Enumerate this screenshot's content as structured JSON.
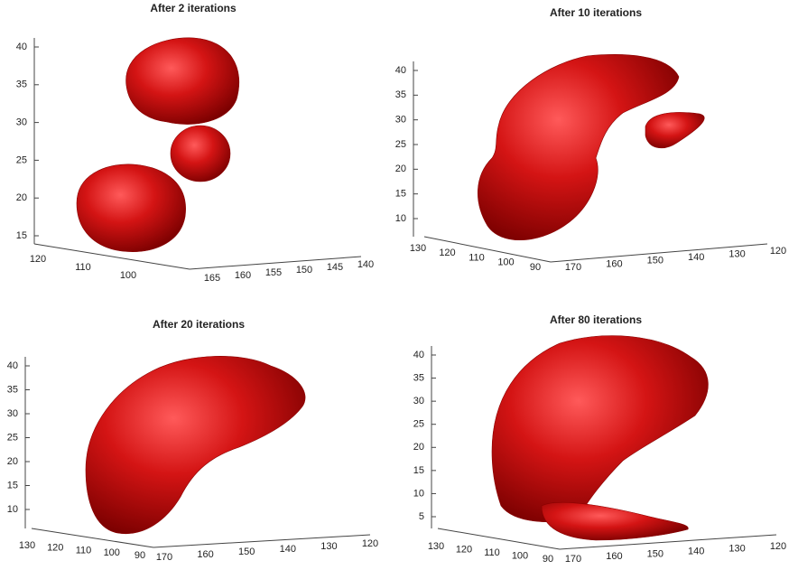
{
  "panels": [
    {
      "title": "After 2 iterations",
      "z_ticks": [
        40,
        35,
        30,
        25,
        20,
        15
      ],
      "x_ticks": [
        120,
        110,
        100
      ],
      "y_ticks": [
        165,
        160,
        155,
        150,
        145,
        140
      ]
    },
    {
      "title": "After 10 iterations",
      "z_ticks": [
        40,
        35,
        30,
        25,
        20,
        15,
        10
      ],
      "x_ticks": [
        130,
        120,
        110,
        100,
        90
      ],
      "y_ticks": [
        170,
        160,
        150,
        140,
        130,
        120
      ]
    },
    {
      "title": "After 20 iterations",
      "z_ticks": [
        40,
        35,
        30,
        25,
        20,
        15,
        10
      ],
      "x_ticks": [
        130,
        120,
        110,
        100,
        90
      ],
      "y_ticks": [
        170,
        160,
        150,
        140,
        130,
        120
      ]
    },
    {
      "title": "After 80 iterations",
      "z_ticks": [
        40,
        35,
        30,
        25,
        20,
        15,
        10,
        5
      ],
      "x_ticks": [
        130,
        120,
        110,
        100,
        90
      ],
      "y_ticks": [
        170,
        160,
        150,
        140,
        130,
        120
      ]
    }
  ]
}
